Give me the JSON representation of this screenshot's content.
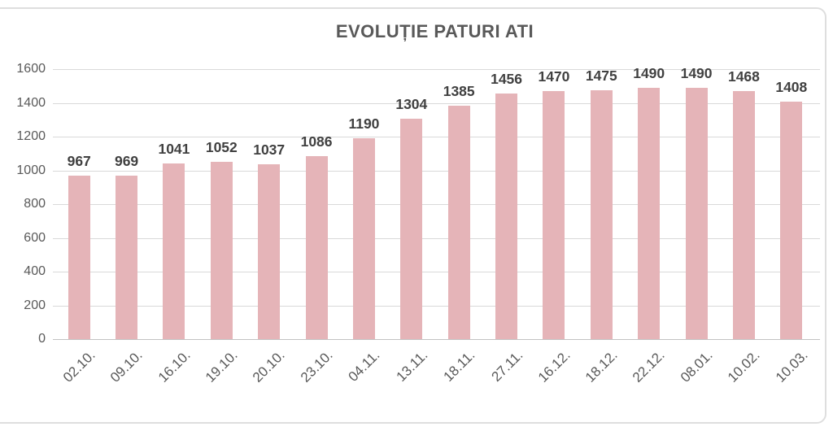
{
  "title": "EVOLUȚIE PATURI ATI",
  "chart_data": {
    "type": "bar",
    "title": "EVOLUȚIE PATURI ATI",
    "categories": [
      "02.10.",
      "09.10.",
      "16.10.",
      "19.10.",
      "20.10.",
      "23.10.",
      "04.11.",
      "13.11.",
      "18.11.",
      "27.11.",
      "16.12.",
      "18.12.",
      "22.12.",
      "08.01.",
      "10.02.",
      "10.03."
    ],
    "values": [
      967,
      969,
      1041,
      1052,
      1037,
      1086,
      1190,
      1304,
      1385,
      1456,
      1470,
      1475,
      1490,
      1490,
      1468,
      1408
    ],
    "data_labels_shown": true,
    "xlabel": "",
    "ylabel": "",
    "ylim": [
      0,
      1600
    ],
    "ytick_step": 200,
    "yticks": [
      "0",
      "200",
      "400",
      "600",
      "800",
      "1000",
      "1200",
      "1400",
      "1600"
    ],
    "grid": "horizontal",
    "legend": "none",
    "bar_color": "#e5b4b8",
    "gridline_color": "#d9d9d9",
    "frame_color": "#dedede",
    "title_color": "#595959",
    "axis_label_color": "#595959",
    "value_label_color": "#404040"
  }
}
